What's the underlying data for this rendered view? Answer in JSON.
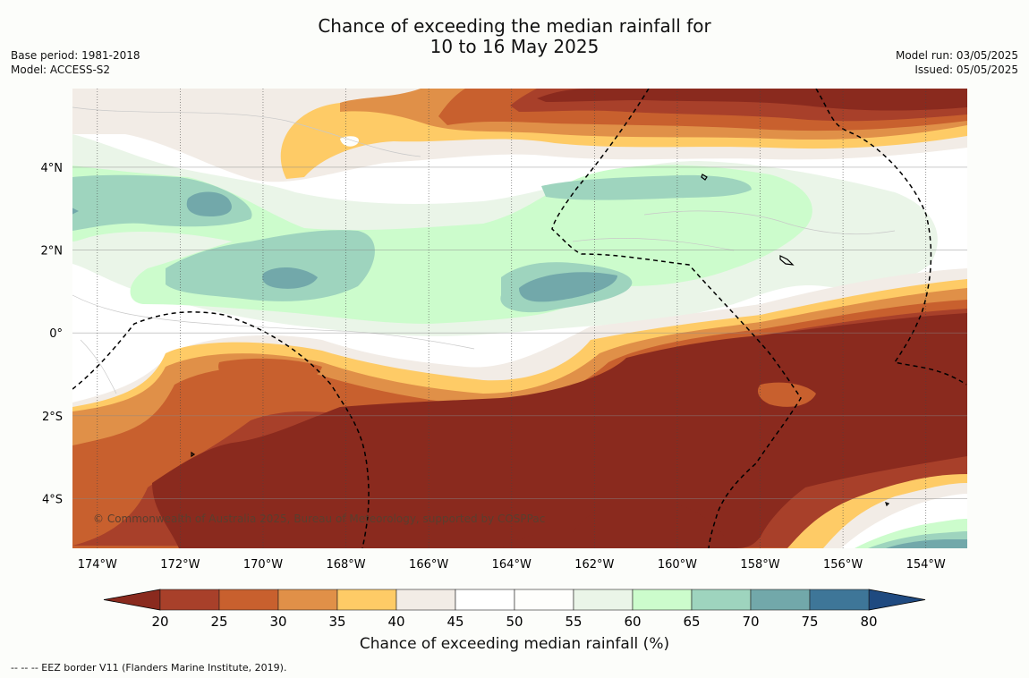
{
  "header": {
    "title_line1": "Chance of exceeding the median rainfall for",
    "title_line2": "10 to 16 May 2025",
    "base_period": "Base period: 1981-2018",
    "model": "Model: ACCESS-S2",
    "model_run": "Model run: 03/05/2025",
    "issued": "Issued: 05/05/2025"
  },
  "map": {
    "copyright": "© Commonwealth of Australia 2025, Bureau of Meteorology, supported by COSPPac",
    "lat_labels": [
      "4°N",
      "2°N",
      "0°",
      "2°S",
      "4°S"
    ],
    "lon_labels": [
      "174°W",
      "172°W",
      "170°W",
      "168°W",
      "166°W",
      "164°W",
      "162°W",
      "160°W",
      "158°W",
      "156°W",
      "154°W"
    ],
    "lat_values": [
      4,
      2,
      0,
      -2,
      -4
    ],
    "lon_values": [
      -174,
      -172,
      -170,
      -168,
      -166,
      -164,
      -162,
      -160,
      -158,
      -156,
      -154
    ],
    "extent": {
      "lon_min": -174.6,
      "lon_max": -153,
      "lat_min": -5.2,
      "lat_max": 5.9
    }
  },
  "colorbar": {
    "ticks": [
      "20",
      "25",
      "30",
      "35",
      "40",
      "45",
      "50",
      "55",
      "60",
      "65",
      "70",
      "75",
      "80"
    ],
    "under_color": "#8a2a1e",
    "over_color": "#1f4a80",
    "colors": [
      "#a8402a",
      "#c8602e",
      "#e09048",
      "#fecb66",
      "#f2ece6",
      "#ffffff",
      "#fefefc",
      "#eaf5e8",
      "#ccfccc",
      "#9ed4be",
      "#72a8aa",
      "#3e7698"
    ],
    "title": "Chance of exceeding median rainfall (%)"
  },
  "footer": "-- -- -- EEZ border V11 (Flanders Marine Institute, 2019)."
}
